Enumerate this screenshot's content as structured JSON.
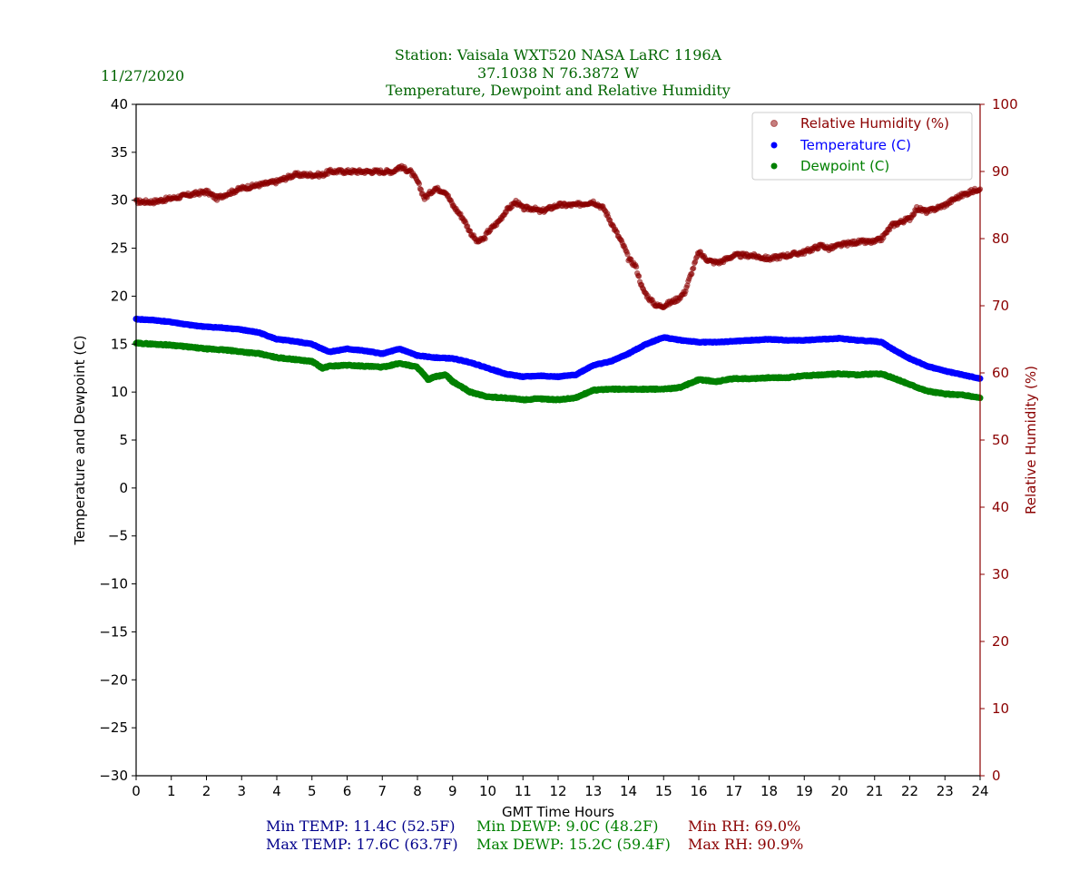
{
  "header": {
    "station_line": "Station:  Vaisala WXT520  NASA LaRC 1196A",
    "coords_line": "37.1038 N 76.3872 W",
    "title_line": "Temperature, Dewpoint and Relative Humidity",
    "date": "11/27/2020"
  },
  "colors": {
    "header": "#006400",
    "temperature": "#0000ff",
    "dewpoint": "#008000",
    "humidity": "#8b0000",
    "min_max_temp_text": "#00008b"
  },
  "stats": {
    "min_temp": "Min TEMP: 11.4C (52.5F)",
    "max_temp": "Max TEMP: 17.6C (63.7F)",
    "min_dewp": "Min DEWP: 9.0C (48.2F)",
    "max_dewp": "Max DEWP: 15.2C (59.4F)",
    "min_rh": "Min RH: 69.0%",
    "max_rh": "Max RH: 90.9%"
  },
  "chart_data": {
    "type": "scatter",
    "xlabel": "GMT Time Hours",
    "ylabel": "Temperature and Dewpoint (C)",
    "y2label": "Relative Humidity (%)",
    "xlim": [
      0,
      24
    ],
    "ylim": [
      -30,
      40
    ],
    "y2lim": [
      0,
      100
    ],
    "xticks": [
      0,
      1,
      2,
      3,
      4,
      5,
      6,
      7,
      8,
      9,
      10,
      11,
      12,
      13,
      14,
      15,
      16,
      17,
      18,
      19,
      20,
      21,
      22,
      23,
      24
    ],
    "yticks": [
      -30,
      -25,
      -20,
      -15,
      -10,
      -5,
      0,
      5,
      10,
      15,
      20,
      25,
      30,
      35,
      40
    ],
    "ytick_labels": [
      "−30",
      "−25",
      "−20",
      "−15",
      "−10",
      "−5",
      "0",
      "5",
      "10",
      "15",
      "20",
      "25",
      "30",
      "35",
      "40"
    ],
    "y2ticks": [
      0,
      10,
      20,
      30,
      40,
      50,
      60,
      70,
      80,
      90,
      100
    ],
    "legend_position": "top-right",
    "series": [
      {
        "name": "Relative Humidity (%)",
        "axis": "right",
        "color": "#8b0000",
        "x": [
          0,
          0.5,
          1,
          1.5,
          2,
          2.3,
          2.5,
          3,
          3.5,
          4,
          4.5,
          5,
          5.3,
          5.5,
          6,
          6.5,
          7,
          7.3,
          7.5,
          7.8,
          8,
          8.2,
          8.5,
          8.8,
          9,
          9.3,
          9.5,
          9.7,
          9.9,
          10,
          10.3,
          10.5,
          10.8,
          11,
          11.3,
          11.5,
          12,
          12.5,
          13,
          13.3,
          13.5,
          13.7,
          13.9,
          14,
          14.2,
          14.4,
          14.6,
          14.8,
          15,
          15.2,
          15.4,
          15.6,
          15.8,
          16,
          16.2,
          16.4,
          16.6,
          16.8,
          17,
          17.5,
          18,
          18.5,
          19,
          19.5,
          19.7,
          20,
          20.5,
          21,
          21.2,
          21.5,
          22,
          22.2,
          22.5,
          23,
          23.3,
          23.5,
          24
        ],
        "y": [
          85.5,
          85.5,
          86,
          86.5,
          87,
          86,
          86.5,
          87.5,
          88,
          88.5,
          89.5,
          89.5,
          89.5,
          90,
          90,
          90,
          90,
          90,
          90.7,
          90,
          88.5,
          86,
          87.5,
          87,
          85,
          83,
          81,
          79.5,
          80,
          81,
          82.5,
          84,
          85.5,
          84.5,
          84.5,
          84,
          85,
          85,
          85.5,
          84.5,
          82.5,
          80.5,
          78.5,
          77,
          76,
          72.5,
          71,
          70,
          70,
          70.5,
          71,
          72,
          75,
          78,
          77,
          76.5,
          76.5,
          77,
          77.5,
          77.5,
          77,
          77.5,
          78,
          79,
          78.5,
          79,
          79.5,
          79.5,
          80,
          82,
          83,
          84.5,
          84,
          85,
          86,
          86.5,
          87.5
        ]
      },
      {
        "name": "Temperature (C)",
        "axis": "left",
        "color": "#0000ff",
        "x": [
          0,
          0.5,
          1,
          1.5,
          2,
          2.5,
          3,
          3.5,
          4,
          4.5,
          5,
          5.3,
          5.5,
          6,
          6.5,
          7,
          7.5,
          8,
          8.5,
          9,
          9.5,
          10,
          10.5,
          11,
          11.5,
          12,
          12.5,
          13,
          13.5,
          14,
          14.5,
          15,
          15.5,
          16,
          16.5,
          17,
          17.5,
          18,
          18.5,
          19,
          19.5,
          20,
          20.5,
          21,
          21.2,
          21.5,
          22,
          22.5,
          23,
          23.5,
          24
        ],
        "y": [
          17.6,
          17.5,
          17.3,
          17,
          16.8,
          16.7,
          16.5,
          16.2,
          15.5,
          15.3,
          15,
          14.5,
          14.2,
          14.5,
          14.3,
          14,
          14.5,
          13.8,
          13.6,
          13.5,
          13.1,
          12.5,
          11.9,
          11.6,
          11.7,
          11.6,
          11.8,
          12.8,
          13.2,
          14,
          15,
          15.7,
          15.4,
          15.2,
          15.2,
          15.3,
          15.4,
          15.5,
          15.4,
          15.4,
          15.5,
          15.6,
          15.4,
          15.3,
          15.2,
          14.5,
          13.5,
          12.7,
          12.2,
          11.8,
          11.4
        ]
      },
      {
        "name": "Dewpoint (C)",
        "axis": "left",
        "color": "#008000",
        "x": [
          0,
          0.5,
          1,
          1.5,
          2,
          2.5,
          3,
          3.5,
          4,
          4.5,
          5,
          5.3,
          5.5,
          6,
          6.5,
          7,
          7.5,
          8,
          8.3,
          8.5,
          8.8,
          9,
          9.5,
          10,
          10.5,
          11,
          11.5,
          12,
          12.5,
          13,
          13.5,
          14,
          14.5,
          15,
          15.5,
          16,
          16.5,
          17,
          17.5,
          18,
          18.5,
          19,
          19.5,
          20,
          20.5,
          21,
          21.2,
          21.5,
          22,
          22.5,
          23,
          23.5,
          24
        ],
        "y": [
          15.1,
          15,
          14.9,
          14.7,
          14.5,
          14.4,
          14.2,
          14,
          13.6,
          13.4,
          13.2,
          12.5,
          12.7,
          12.8,
          12.7,
          12.6,
          13,
          12.6,
          11.3,
          11.6,
          11.8,
          11.1,
          10,
          9.5,
          9.4,
          9.2,
          9.3,
          9.2,
          9.4,
          10.2,
          10.3,
          10.3,
          10.3,
          10.3,
          10.5,
          11.3,
          11.1,
          11.4,
          11.4,
          11.5,
          11.5,
          11.7,
          11.8,
          11.9,
          11.8,
          11.9,
          11.9,
          11.5,
          10.8,
          10.1,
          9.8,
          9.7,
          9.4
        ]
      }
    ]
  }
}
